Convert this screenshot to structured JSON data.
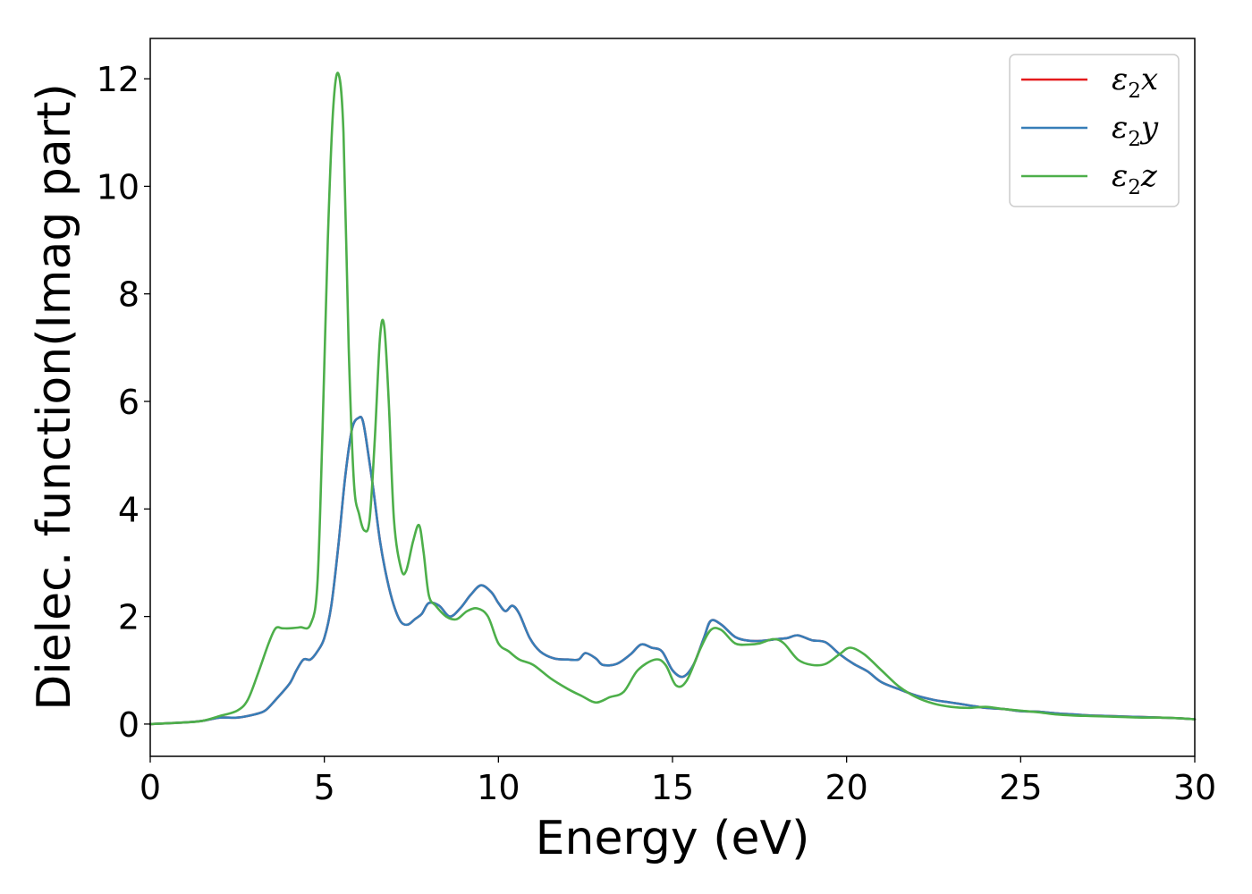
{
  "chart_data": {
    "type": "line",
    "title": "",
    "xlabel": "Energy (eV)",
    "ylabel": "Dielec. function(Imag part)",
    "xlim": [
      0,
      30
    ],
    "ylim": [
      -0.6,
      12.75
    ],
    "xticks": [
      0,
      5,
      10,
      15,
      20,
      25,
      30
    ],
    "yticks": [
      0,
      2,
      4,
      6,
      8,
      10,
      12
    ],
    "grid": false,
    "legend_position": "top-right",
    "series": [
      {
        "name": "ε₂x",
        "legend_main": "ε",
        "legend_sub": "2",
        "legend_var": "x",
        "color": "#e41a1c",
        "x": [
          0,
          1,
          1.5,
          2,
          2.5,
          3,
          3.3,
          3.6,
          4,
          4.2,
          4.4,
          4.6,
          4.8,
          5,
          5.2,
          5.4,
          5.6,
          5.8,
          6,
          6.1,
          6.2,
          6.4,
          6.6,
          6.8,
          7,
          7.2,
          7.4,
          7.6,
          7.8,
          8,
          8.3,
          8.6,
          8.9,
          9.2,
          9.5,
          9.8,
          10,
          10.2,
          10.4,
          10.6,
          10.9,
          11.2,
          11.6,
          12,
          12.3,
          12.5,
          12.8,
          13,
          13.4,
          13.8,
          14.1,
          14.4,
          14.7,
          15,
          15.3,
          15.6,
          15.9,
          16.1,
          16.4,
          16.8,
          17.2,
          17.6,
          18,
          18.3,
          18.6,
          19,
          19.4,
          19.8,
          20.2,
          20.6,
          21,
          21.5,
          22,
          22.5,
          23,
          23.5,
          24,
          24.5,
          25,
          25.5,
          26,
          26.5,
          27,
          27.5,
          28,
          28.5,
          29,
          29.5,
          30
        ],
        "y": [
          0,
          0.03,
          0.06,
          0.12,
          0.12,
          0.18,
          0.25,
          0.45,
          0.75,
          1.0,
          1.2,
          1.2,
          1.35,
          1.6,
          2.2,
          3.3,
          4.6,
          5.5,
          5.7,
          5.65,
          5.3,
          4.4,
          3.4,
          2.7,
          2.2,
          1.9,
          1.85,
          1.95,
          2.05,
          2.25,
          2.2,
          2.0,
          2.15,
          2.4,
          2.58,
          2.45,
          2.25,
          2.1,
          2.2,
          2.05,
          1.6,
          1.35,
          1.22,
          1.2,
          1.2,
          1.32,
          1.22,
          1.1,
          1.12,
          1.3,
          1.48,
          1.42,
          1.35,
          1.0,
          0.88,
          1.1,
          1.6,
          1.92,
          1.85,
          1.62,
          1.55,
          1.55,
          1.58,
          1.6,
          1.65,
          1.56,
          1.52,
          1.3,
          1.12,
          0.98,
          0.78,
          0.65,
          0.53,
          0.45,
          0.4,
          0.35,
          0.3,
          0.28,
          0.24,
          0.23,
          0.2,
          0.18,
          0.16,
          0.15,
          0.14,
          0.13,
          0.12,
          0.11,
          0.09
        ]
      },
      {
        "name": "ε₂y",
        "legend_main": "ε",
        "legend_sub": "2",
        "legend_var": "y",
        "color": "#377eb8",
        "x": [
          0,
          1,
          1.5,
          2,
          2.5,
          3,
          3.3,
          3.6,
          4,
          4.2,
          4.4,
          4.6,
          4.8,
          5,
          5.2,
          5.4,
          5.6,
          5.8,
          6,
          6.1,
          6.2,
          6.4,
          6.6,
          6.8,
          7,
          7.2,
          7.4,
          7.6,
          7.8,
          8,
          8.3,
          8.6,
          8.9,
          9.2,
          9.5,
          9.8,
          10,
          10.2,
          10.4,
          10.6,
          10.9,
          11.2,
          11.6,
          12,
          12.3,
          12.5,
          12.8,
          13,
          13.4,
          13.8,
          14.1,
          14.4,
          14.7,
          15,
          15.3,
          15.6,
          15.9,
          16.1,
          16.4,
          16.8,
          17.2,
          17.6,
          18,
          18.3,
          18.6,
          19,
          19.4,
          19.8,
          20.2,
          20.6,
          21,
          21.5,
          22,
          22.5,
          23,
          23.5,
          24,
          24.5,
          25,
          25.5,
          26,
          26.5,
          27,
          27.5,
          28,
          28.5,
          29,
          29.5,
          30
        ],
        "y": [
          0,
          0.03,
          0.06,
          0.12,
          0.12,
          0.18,
          0.25,
          0.45,
          0.75,
          1.0,
          1.2,
          1.2,
          1.35,
          1.6,
          2.2,
          3.3,
          4.6,
          5.5,
          5.7,
          5.65,
          5.3,
          4.4,
          3.4,
          2.7,
          2.2,
          1.9,
          1.85,
          1.95,
          2.05,
          2.25,
          2.2,
          2.0,
          2.15,
          2.4,
          2.58,
          2.45,
          2.25,
          2.1,
          2.2,
          2.05,
          1.6,
          1.35,
          1.22,
          1.2,
          1.2,
          1.32,
          1.22,
          1.1,
          1.12,
          1.3,
          1.48,
          1.42,
          1.35,
          1.0,
          0.88,
          1.1,
          1.6,
          1.92,
          1.85,
          1.62,
          1.55,
          1.55,
          1.58,
          1.6,
          1.65,
          1.56,
          1.52,
          1.3,
          1.12,
          0.98,
          0.78,
          0.65,
          0.53,
          0.45,
          0.4,
          0.35,
          0.3,
          0.28,
          0.24,
          0.23,
          0.2,
          0.18,
          0.16,
          0.15,
          0.14,
          0.13,
          0.12,
          0.11,
          0.09
        ]
      },
      {
        "name": "ε₂z",
        "legend_main": "ε",
        "legend_sub": "2",
        "legend_var": "z",
        "color": "#4daf4a",
        "x": [
          0,
          1,
          1.5,
          2,
          2.5,
          2.8,
          3.1,
          3.4,
          3.6,
          3.8,
          4,
          4.3,
          4.6,
          4.8,
          4.95,
          5.1,
          5.25,
          5.4,
          5.55,
          5.7,
          5.85,
          6,
          6.15,
          6.3,
          6.45,
          6.6,
          6.72,
          6.85,
          7,
          7.2,
          7.35,
          7.55,
          7.72,
          7.85,
          8,
          8.2,
          8.5,
          8.8,
          9.1,
          9.4,
          9.7,
          10,
          10.3,
          10.6,
          11,
          11.5,
          12,
          12.4,
          12.8,
          13.2,
          13.6,
          14,
          14.5,
          14.8,
          15.1,
          15.4,
          15.8,
          16.1,
          16.4,
          16.8,
          17.2,
          17.5,
          17.9,
          18.2,
          18.6,
          19,
          19.4,
          19.8,
          20.1,
          20.5,
          21,
          21.5,
          22,
          22.5,
          23,
          23.5,
          24,
          24.5,
          25,
          25.5,
          26,
          26.5,
          27,
          27.5,
          28,
          28.5,
          29,
          29.5,
          30
        ],
        "y": [
          0,
          0.03,
          0.06,
          0.15,
          0.25,
          0.45,
          0.95,
          1.5,
          1.78,
          1.78,
          1.78,
          1.8,
          1.85,
          2.6,
          5.5,
          9.0,
          11.4,
          12.1,
          11.0,
          7.0,
          4.5,
          3.9,
          3.6,
          3.8,
          5.3,
          7.2,
          7.4,
          6.0,
          3.8,
          2.9,
          2.85,
          3.4,
          3.7,
          3.2,
          2.4,
          2.2,
          2.0,
          1.95,
          2.1,
          2.15,
          2.0,
          1.5,
          1.35,
          1.2,
          1.1,
          0.85,
          0.65,
          0.52,
          0.4,
          0.5,
          0.6,
          1.0,
          1.2,
          1.1,
          0.72,
          0.8,
          1.4,
          1.75,
          1.75,
          1.5,
          1.48,
          1.5,
          1.58,
          1.5,
          1.2,
          1.1,
          1.12,
          1.3,
          1.42,
          1.3,
          1.0,
          0.7,
          0.5,
          0.38,
          0.32,
          0.3,
          0.32,
          0.28,
          0.25,
          0.22,
          0.18,
          0.16,
          0.15,
          0.14,
          0.13,
          0.12,
          0.12,
          0.11,
          0.09
        ]
      }
    ]
  }
}
